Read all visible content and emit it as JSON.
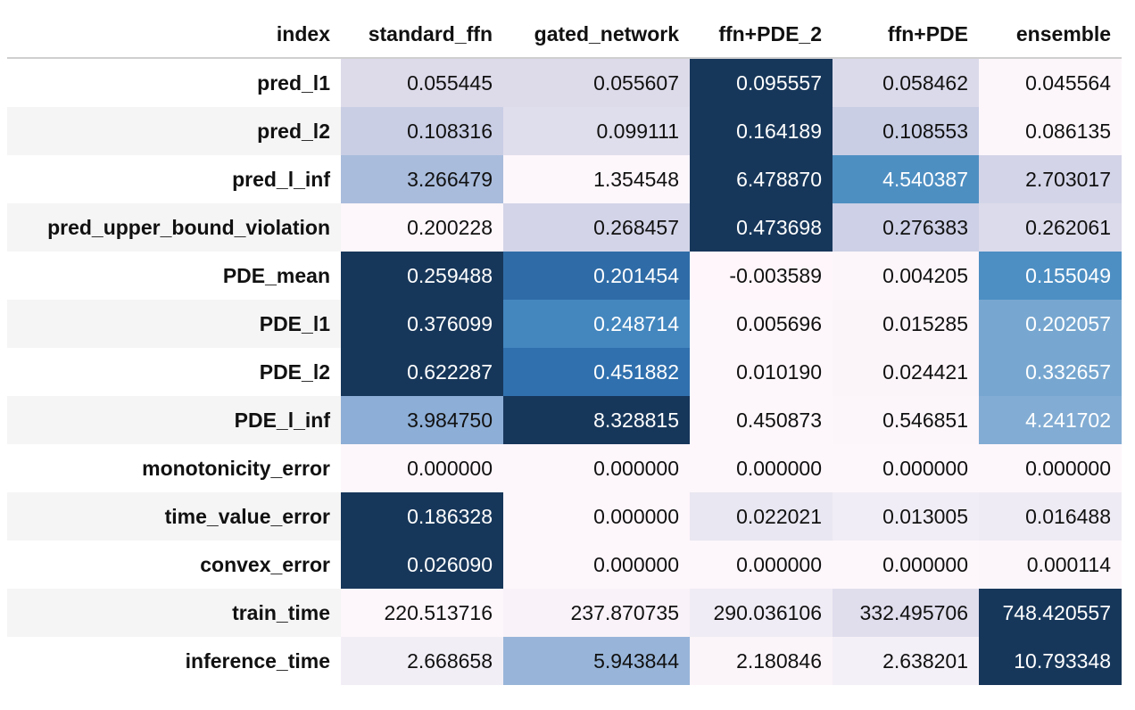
{
  "chart_data": {
    "type": "table",
    "columns": [
      "index",
      "standard_ffn",
      "gated_network",
      "ffn+PDE_2",
      "ffn+PDE",
      "ensemble"
    ],
    "rows": [
      {
        "label": "pred_l1",
        "values": [
          "0.055445",
          "0.055607",
          "0.095557",
          "0.058462",
          "0.045564"
        ]
      },
      {
        "label": "pred_l2",
        "values": [
          "0.108316",
          "0.099111",
          "0.164189",
          "0.108553",
          "0.086135"
        ]
      },
      {
        "label": "pred_l_inf",
        "values": [
          "3.266479",
          "1.354548",
          "6.478870",
          "4.540387",
          "2.703017"
        ]
      },
      {
        "label": "pred_upper_bound_violation",
        "values": [
          "0.200228",
          "0.268457",
          "0.473698",
          "0.276383",
          "0.262061"
        ]
      },
      {
        "label": "PDE_mean",
        "values": [
          "0.259488",
          "0.201454",
          "-0.003589",
          "0.004205",
          "0.155049"
        ]
      },
      {
        "label": "PDE_l1",
        "values": [
          "0.376099",
          "0.248714",
          "0.005696",
          "0.015285",
          "0.202057"
        ]
      },
      {
        "label": "PDE_l2",
        "values": [
          "0.622287",
          "0.451882",
          "0.010190",
          "0.024421",
          "0.332657"
        ]
      },
      {
        "label": "PDE_l_inf",
        "values": [
          "3.984750",
          "8.328815",
          "0.450873",
          "0.546851",
          "4.241702"
        ]
      },
      {
        "label": "monotonicity_error",
        "values": [
          "0.000000",
          "0.000000",
          "0.000000",
          "0.000000",
          "0.000000"
        ]
      },
      {
        "label": "time_value_error",
        "values": [
          "0.186328",
          "0.000000",
          "0.022021",
          "0.013005",
          "0.016488"
        ]
      },
      {
        "label": "convex_error",
        "values": [
          "0.026090",
          "0.000000",
          "0.000000",
          "0.000000",
          "0.000114"
        ]
      },
      {
        "label": "train_time",
        "values": [
          "220.513716",
          "237.870735",
          "290.036106",
          "332.495706",
          "748.420557"
        ]
      },
      {
        "label": "inference_time",
        "values": [
          "2.668658",
          "5.943844",
          "2.180846",
          "2.638201",
          "10.793348"
        ]
      }
    ],
    "cell_colors": [
      [
        "#dddbea",
        "#dddbea",
        "#17375a",
        "#dbdaeb",
        "#fcf6fb"
      ],
      [
        "#c9cee5",
        "#dfdeec",
        "#17375a",
        "#c9cee5",
        "#fcf6fb"
      ],
      [
        "#a9bcdc",
        "#fdf6fb",
        "#17375a",
        "#4e8fc2",
        "#d3d4e8"
      ],
      [
        "#fdf6fb",
        "#d3d4e8",
        "#17375a",
        "#cdd0e6",
        "#dcdbeb"
      ],
      [
        "#17375a",
        "#2f6ca7",
        "#fef6fa",
        "#fcf6fa",
        "#4d8fc3"
      ],
      [
        "#17375a",
        "#4487bf",
        "#fdf6fa",
        "#fbf4f9",
        "#77a7d0"
      ],
      [
        "#17375a",
        "#3070ae",
        "#fdf6fa",
        "#fbf4f9",
        "#77a7d0"
      ],
      [
        "#8daed6",
        "#17375a",
        "#fdf6fa",
        "#fcf5fa",
        "#82acd3"
      ],
      [
        "#fdf6fb",
        "#fdf6fb",
        "#fdf6fb",
        "#fdf6fb",
        "#fdf6fb"
      ],
      [
        "#17375a",
        "#fdf6fb",
        "#e9e7f1",
        "#f1edf6",
        "#efebf4"
      ],
      [
        "#17375a",
        "#fdf6fb",
        "#fdf6fb",
        "#fdf6fb",
        "#fcf6fb"
      ],
      [
        "#fdf6fb",
        "#f9f2f8",
        "#f0ecf5",
        "#e0deed",
        "#17375a"
      ],
      [
        "#f2eef6",
        "#98b5d9",
        "#fbf4f9",
        "#f4f0f7",
        "#17375a"
      ]
    ],
    "text_colors": [
      [
        "#111111",
        "#111111",
        "#ffffff",
        "#111111",
        "#111111"
      ],
      [
        "#111111",
        "#111111",
        "#ffffff",
        "#111111",
        "#111111"
      ],
      [
        "#111111",
        "#111111",
        "#ffffff",
        "#ffffff",
        "#111111"
      ],
      [
        "#111111",
        "#111111",
        "#ffffff",
        "#111111",
        "#111111"
      ],
      [
        "#ffffff",
        "#ffffff",
        "#111111",
        "#111111",
        "#ffffff"
      ],
      [
        "#ffffff",
        "#ffffff",
        "#111111",
        "#111111",
        "#ffffff"
      ],
      [
        "#ffffff",
        "#ffffff",
        "#111111",
        "#111111",
        "#ffffff"
      ],
      [
        "#111111",
        "#ffffff",
        "#111111",
        "#111111",
        "#ffffff"
      ],
      [
        "#111111",
        "#111111",
        "#111111",
        "#111111",
        "#111111"
      ],
      [
        "#ffffff",
        "#111111",
        "#111111",
        "#111111",
        "#111111"
      ],
      [
        "#ffffff",
        "#111111",
        "#111111",
        "#111111",
        "#111111"
      ],
      [
        "#111111",
        "#111111",
        "#111111",
        "#111111",
        "#ffffff"
      ],
      [
        "#111111",
        "#111111",
        "#111111",
        "#111111",
        "#ffffff"
      ]
    ]
  }
}
